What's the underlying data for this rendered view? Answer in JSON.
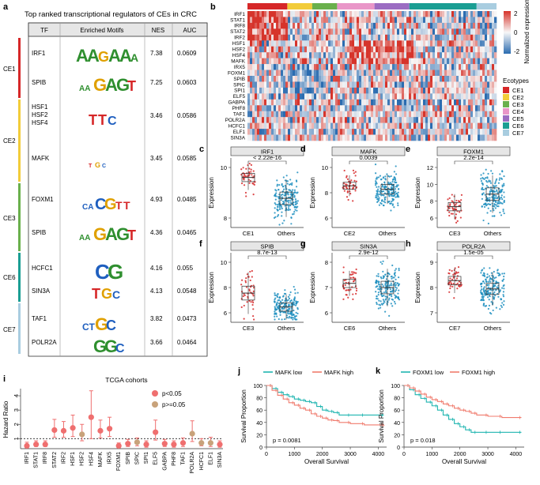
{
  "panels": {
    "a": {
      "letter": "a",
      "title": "Top ranked transcriptional regulators of CEs in CRC",
      "columns": [
        "TF",
        "Enriched Motifs",
        "NES",
        "AUC"
      ],
      "groups": [
        {
          "label": "CE1",
          "color": "#d62728"
        },
        {
          "label": "CE2",
          "color": "#f2cc3a"
        },
        {
          "label": "CE3",
          "color": "#6ab04c"
        },
        {
          "label": "CE6",
          "color": "#1a9e93"
        },
        {
          "label": "CE7",
          "color": "#a9cde0"
        }
      ],
      "rows": [
        {
          "tf": "IRF1",
          "nes": "7.38",
          "auc": "0.0609"
        },
        {
          "tf": "SPIB",
          "nes": "7.25",
          "auc": "0.0603"
        },
        {
          "tf_lines": [
            "HSF1",
            "HSF2",
            "HSF4"
          ],
          "nes": "3.46",
          "auc": "0.0586"
        },
        {
          "tf": "MAFK",
          "nes": "3.45",
          "auc": "0.0585"
        },
        {
          "tf": "FOXM1",
          "nes": "4.93",
          "auc": "0.0485"
        },
        {
          "tf": "SPIB",
          "nes": "4.36",
          "auc": "0.0465"
        },
        {
          "tf": "HCFC1",
          "nes": "4.16",
          "auc": "0.055"
        },
        {
          "tf": "SIN3A",
          "nes": "4.13",
          "auc": "0.0548"
        },
        {
          "tf": "TAF1",
          "nes": "3.82",
          "auc": "0.0473"
        },
        {
          "tf": "POLR2A",
          "nes": "3.66",
          "auc": "0.0464"
        }
      ]
    },
    "b": {
      "letter": "b",
      "genes": [
        "IRF1",
        "STAT1",
        "IRF8",
        "STAT2",
        "IRF2",
        "HSF1",
        "HSF2",
        "HSF4",
        "MAFK",
        "IRX5",
        "FOXM1",
        "SPIB",
        "SPIC",
        "SPI1",
        "ELF5",
        "GABPA",
        "PHF8",
        "TAF1",
        "POLR2A",
        "HCFC1",
        "ELF1",
        "SIN3A"
      ],
      "colorbar_label": "Normalized expression",
      "colorbar_ticks": [
        "2",
        "0",
        "-2"
      ],
      "legend_title": "Ecotypes",
      "ecotypes": [
        {
          "label": "CE1",
          "color": "#d62728"
        },
        {
          "label": "CE2",
          "color": "#f2cc3a"
        },
        {
          "label": "CE3",
          "color": "#6ab04c"
        },
        {
          "label": "CE4",
          "color": "#e996c8"
        },
        {
          "label": "CE5",
          "color": "#9b6cc2"
        },
        {
          "label": "CE6",
          "color": "#1a9e93"
        },
        {
          "label": "CE7",
          "color": "#a9cde0"
        }
      ]
    },
    "boxplots": [
      {
        "letter": "c",
        "gene": "IRF1",
        "group": "CE1",
        "other": "Others",
        "p": "< 2.22e-16",
        "ylabel": "Expression",
        "yticks": [
          "8",
          "10"
        ],
        "color": "#d62728"
      },
      {
        "letter": "d",
        "gene": "MAFK",
        "group": "CE2",
        "other": "Others",
        "p": "0.0039",
        "ylabel": "Expression",
        "yticks": [
          "6",
          "8",
          "10"
        ],
        "color": "#d62728"
      },
      {
        "letter": "e",
        "gene": "FOXM1",
        "group": "CE3",
        "other": "Others",
        "p": "2.2e-14",
        "ylabel": "Expression",
        "yticks": [
          "6",
          "8",
          "10",
          "12"
        ],
        "color": "#d62728"
      },
      {
        "letter": "f",
        "gene": "SPIB",
        "group": "CE3",
        "other": "Others",
        "p": "8.7e-13",
        "ylabel": "Expression",
        "yticks": [
          "6",
          "8",
          "10"
        ],
        "color": "#d62728"
      },
      {
        "letter": "g",
        "gene": "SIN3A",
        "group": "CE6",
        "other": "Others",
        "p": "2.9e-12",
        "ylabel": "Expression",
        "yticks": [
          "6",
          "7",
          "8"
        ],
        "color": "#d62728"
      },
      {
        "letter": "h",
        "gene": "POLR2A",
        "group": "CE7",
        "other": "Others",
        "p": "1.5e-05",
        "ylabel": "Expression",
        "yticks": [
          "7",
          "8",
          "9"
        ],
        "color": "#d62728"
      }
    ],
    "i": {
      "letter": "i",
      "title": "TCGA cohorts",
      "ylabel": "Hazard Ratio",
      "yticks": [
        "1",
        "2",
        "3",
        "4"
      ],
      "legend": [
        {
          "label": "p<0.05",
          "color": "#ef6f6f"
        },
        {
          "label": "p>=0.05",
          "color": "#c8a27a"
        }
      ]
    },
    "j": {
      "letter": "j",
      "legend": [
        {
          "label": "MAFK low",
          "color": "#1fb5b0"
        },
        {
          "label": "MAFK high",
          "color": "#f07b6d"
        }
      ],
      "ylabel": "Survival Proportion",
      "xlabel": "Overall Survival",
      "pvalue": "p = 0.0081",
      "xticks": [
        "0",
        "1000",
        "2000",
        "3000",
        "4000"
      ],
      "yticks": [
        "100",
        "80",
        "60",
        "40",
        "20",
        "0"
      ]
    },
    "k": {
      "letter": "k",
      "legend": [
        {
          "label": "FOXM1 low",
          "color": "#1fb5b0"
        },
        {
          "label": "FOXM1 high",
          "color": "#f07b6d"
        }
      ],
      "ylabel": "Survival Proportion",
      "xlabel": "Overall Survival",
      "pvalue": "p = 0.018",
      "xticks": [
        "0",
        "1000",
        "2000",
        "3000",
        "4000"
      ],
      "yticks": [
        "100",
        "80",
        "60",
        "40",
        "20",
        "0"
      ]
    }
  },
  "chart_data": [
    {
      "type": "scatter",
      "title": "TCGA cohorts",
      "ylabel": "Hazard Ratio",
      "categories": [
        "IRF1",
        "STAT1",
        "IRF8",
        "STAT2",
        "IRF2",
        "HSF1",
        "HSF2",
        "HSF4",
        "MAFK",
        "IRX5",
        "FOXM1",
        "SPIB",
        "SPIC",
        "SPI1",
        "ELF5",
        "GABPA",
        "PHF8",
        "TAF1",
        "POLR2A",
        "HCFC1",
        "ELF1",
        "SIN3A"
      ],
      "hr": [
        0.5,
        0.6,
        0.6,
        1.6,
        1.55,
        1.75,
        1.3,
        2.5,
        1.55,
        1.7,
        0.5,
        0.65,
        0.75,
        0.6,
        1.45,
        0.65,
        0.6,
        0.7,
        1.35,
        0.7,
        0.7,
        0.6
      ],
      "low": [
        0.35,
        0.45,
        0.45,
        1.1,
        1.1,
        1.15,
        0.85,
        1.0,
        1.05,
        1.15,
        0.35,
        0.45,
        0.5,
        0.4,
        0.9,
        0.45,
        0.4,
        0.45,
        0.8,
        0.5,
        0.45,
        0.4
      ],
      "high": [
        0.75,
        0.85,
        0.85,
        2.35,
        2.2,
        2.65,
        2.0,
        4.35,
        2.3,
        2.5,
        0.7,
        0.95,
        1.05,
        0.85,
        2.3,
        0.95,
        0.85,
        1.05,
        2.25,
        1.0,
        1.1,
        0.85
      ],
      "significant": [
        true,
        true,
        true,
        true,
        true,
        true,
        false,
        true,
        true,
        true,
        true,
        true,
        false,
        true,
        true,
        true,
        true,
        true,
        false,
        false,
        false,
        true
      ],
      "reference_line": 1,
      "ylim": [
        0.3,
        4.5
      ]
    },
    {
      "type": "line",
      "title": "MAFK survival",
      "xlabel": "Overall Survival",
      "ylabel": "Survival Proportion",
      "xlim": [
        0,
        4300
      ],
      "ylim": [
        0,
        100
      ],
      "series": [
        {
          "name": "MAFK low",
          "x": [
            0,
            200,
            400,
            600,
            800,
            1000,
            1200,
            1400,
            1600,
            1800,
            2000,
            2200,
            2400,
            2600,
            3000,
            3500,
            4200
          ],
          "values": [
            100,
            95,
            89,
            85,
            82,
            78,
            76,
            74,
            72,
            66,
            60,
            58,
            56,
            52,
            52,
            52,
            52
          ]
        },
        {
          "name": "MAFK high",
          "x": [
            0,
            200,
            400,
            600,
            800,
            1000,
            1200,
            1400,
            1600,
            1800,
            2000,
            2200,
            2400,
            2600,
            3000,
            3500,
            4200
          ],
          "values": [
            100,
            92,
            84,
            78,
            72,
            68,
            63,
            60,
            54,
            50,
            47,
            44,
            43,
            40,
            38,
            36,
            34
          ]
        }
      ],
      "pvalue": "p = 0.0081"
    },
    {
      "type": "line",
      "title": "FOXM1 survival",
      "xlabel": "Overall Survival",
      "ylabel": "Survival Proportion",
      "xlim": [
        0,
        4300
      ],
      "ylim": [
        0,
        100
      ],
      "series": [
        {
          "name": "FOXM1 low",
          "x": [
            0,
            200,
            400,
            600,
            800,
            1000,
            1200,
            1400,
            1600,
            1800,
            2000,
            2200,
            2400,
            2600,
            3000,
            3500,
            4200
          ],
          "values": [
            100,
            93,
            85,
            79,
            73,
            67,
            60,
            52,
            45,
            38,
            33,
            28,
            24,
            24,
            24,
            24,
            24
          ]
        },
        {
          "name": "FOXM1 high",
          "x": [
            0,
            200,
            400,
            600,
            800,
            1000,
            1200,
            1400,
            1600,
            1800,
            2000,
            2200,
            2400,
            2600,
            3000,
            3500,
            4200
          ],
          "values": [
            100,
            96,
            91,
            86,
            81,
            77,
            74,
            70,
            67,
            63,
            60,
            58,
            55,
            52,
            50,
            48,
            48
          ]
        }
      ],
      "pvalue": "p = 0.018"
    }
  ]
}
